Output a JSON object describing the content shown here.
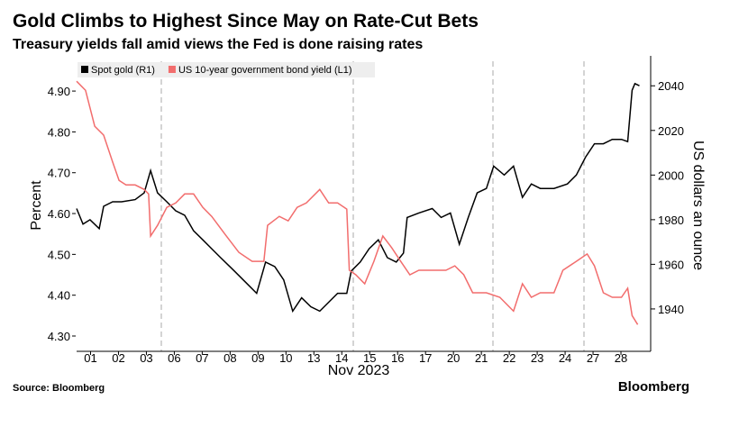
{
  "chart_data": {
    "type": "line",
    "title": "Gold Climbs to Highest Since May on Rate-Cut Bets",
    "subtitle": "Treasury yields fall amid views the Fed is done raising rates",
    "xlabel": "Nov 2023",
    "ylabel": "Percent",
    "y2label": "US dollars an ounce",
    "source": "Source: Bloomberg",
    "brand": "Bloomberg",
    "xlim": [
      0,
      20.5
    ],
    "xticks": [
      {
        "value": 0.5,
        "label": "01"
      },
      {
        "value": 1.5,
        "label": "02"
      },
      {
        "value": 2.5,
        "label": "03"
      },
      {
        "value": 3.5,
        "label": "06"
      },
      {
        "value": 4.5,
        "label": "07"
      },
      {
        "value": 5.5,
        "label": "08"
      },
      {
        "value": 6.5,
        "label": "09"
      },
      {
        "value": 7.5,
        "label": "10"
      },
      {
        "value": 8.5,
        "label": "13"
      },
      {
        "value": 9.5,
        "label": "14"
      },
      {
        "value": 10.5,
        "label": "15"
      },
      {
        "value": 11.5,
        "label": "16"
      },
      {
        "value": 12.5,
        "label": "17"
      },
      {
        "value": 13.5,
        "label": "20"
      },
      {
        "value": 14.5,
        "label": "21"
      },
      {
        "value": 15.5,
        "label": "22"
      },
      {
        "value": 16.5,
        "label": "23"
      },
      {
        "value": 17.5,
        "label": "24"
      },
      {
        "value": 18.5,
        "label": "27"
      },
      {
        "value": 19.5,
        "label": "28"
      }
    ],
    "ylim": [
      4.2625,
      4.973
    ],
    "yticks": [
      {
        "value": 4.3,
        "label": "4.30"
      },
      {
        "value": 4.4,
        "label": "4.40"
      },
      {
        "value": 4.5,
        "label": "4.50"
      },
      {
        "value": 4.6,
        "label": "4.60"
      },
      {
        "value": 4.7,
        "label": "4.70"
      },
      {
        "value": 4.8,
        "label": "4.80"
      },
      {
        "value": 4.9,
        "label": "4.90"
      }
    ],
    "y2lim": [
      1921,
      2051
    ],
    "y2ticks": [
      1940,
      1960,
      1980,
      2000,
      2020,
      2040
    ],
    "legend": "top-left",
    "series": [
      {
        "name": "Spot gold (R1)",
        "color": "#000000",
        "axis": "y2",
        "x": [
          0,
          0.23,
          0.48,
          0.81,
          0.97,
          1.29,
          1.61,
          2.1,
          2.42,
          2.65,
          2.9,
          3.23,
          3.55,
          3.87,
          4.19,
          4.52,
          4.84,
          5.16,
          5.65,
          6.13,
          6.45,
          6.77,
          7.1,
          7.42,
          7.74,
          8.06,
          8.39,
          8.71,
          9.03,
          9.35,
          9.68,
          9.84,
          10.16,
          10.48,
          10.81,
          11.13,
          11.45,
          11.71,
          11.84,
          12.26,
          12.74,
          13.06,
          13.39,
          13.71,
          14.03,
          14.35,
          14.68,
          14.94,
          15.32,
          15.65,
          15.97,
          16.29,
          16.61,
          17.1,
          17.58,
          17.9,
          18.23,
          18.55,
          18.87,
          19.19,
          19.52,
          19.74,
          19.9,
          20.0,
          20.16
        ],
        "values": [
          1985,
          1978,
          1980,
          1976,
          1986,
          1988,
          1988,
          1989,
          1992,
          2002,
          1992,
          1988,
          1984,
          1982,
          1975,
          1971,
          1967,
          1963,
          1957,
          1951,
          1947,
          1961,
          1959,
          1953,
          1939,
          1945,
          1941,
          1939,
          1943,
          1947,
          1947,
          1957,
          1961,
          1967,
          1971,
          1963,
          1961,
          1965,
          1981,
          1983,
          1985,
          1981,
          1983,
          1969,
          1981,
          1992,
          1994,
          2004,
          2000,
          2004,
          1990,
          1996,
          1994,
          1994,
          1996,
          2000,
          2008,
          2014,
          2014,
          2016,
          2016,
          2015,
          2038,
          2041,
          2040
        ]
      },
      {
        "name": "US 10-year government bond yield (L1)",
        "color": "#f26d6d",
        "axis": "y",
        "x": [
          0,
          0.32,
          0.65,
          0.97,
          1.29,
          1.52,
          1.77,
          2.1,
          2.42,
          2.58,
          2.65,
          2.9,
          3.23,
          3.55,
          3.87,
          4.19,
          4.52,
          4.84,
          5.32,
          5.81,
          6.29,
          6.71,
          6.84,
          7.26,
          7.58,
          7.9,
          8.23,
          8.71,
          9.03,
          9.35,
          9.68,
          9.77,
          10.0,
          10.32,
          10.65,
          10.97,
          11.29,
          11.61,
          11.94,
          12.26,
          12.74,
          13.23,
          13.55,
          13.87,
          14.19,
          14.68,
          15.16,
          15.65,
          15.97,
          16.29,
          16.61,
          17.1,
          17.42,
          17.9,
          18.29,
          18.55,
          18.87,
          19.19,
          19.52,
          19.74,
          19.9,
          20.1
        ],
        "values": [
          4.924,
          4.902,
          4.814,
          4.792,
          4.726,
          4.681,
          4.67,
          4.67,
          4.659,
          4.648,
          4.545,
          4.571,
          4.615,
          4.626,
          4.648,
          4.648,
          4.615,
          4.593,
          4.549,
          4.505,
          4.483,
          4.483,
          4.571,
          4.593,
          4.582,
          4.615,
          4.626,
          4.659,
          4.626,
          4.626,
          4.611,
          4.461,
          4.45,
          4.428,
          4.483,
          4.545,
          4.516,
          4.483,
          4.45,
          4.461,
          4.461,
          4.461,
          4.472,
          4.45,
          4.406,
          4.406,
          4.395,
          4.361,
          4.428,
          4.395,
          4.406,
          4.406,
          4.461,
          4.483,
          4.501,
          4.472,
          4.406,
          4.395,
          4.395,
          4.417,
          4.35,
          4.328
        ]
      }
    ]
  }
}
